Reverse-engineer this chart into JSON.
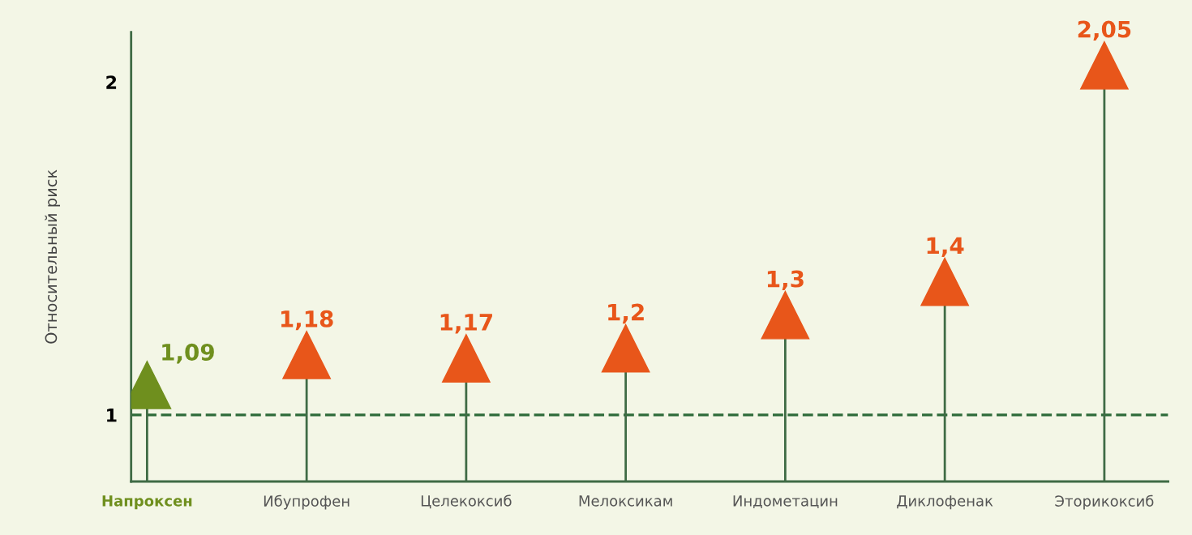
{
  "chart_data": {
    "type": "lollipop",
    "ylabel": "Относительный риск",
    "categories": [
      "Напроксен",
      "Ибупрофен",
      "Целекоксиб",
      "Мелоксикам",
      "Индометацин",
      "Диклофенак",
      "Эторикоксиб"
    ],
    "values": [
      1.09,
      1.18,
      1.17,
      1.2,
      1.3,
      1.4,
      2.05
    ],
    "colors": [
      "#6f8f1e",
      "#e8561a",
      "#e8561a",
      "#e8561a",
      "#e8561a",
      "#e8561a",
      "#e8561a"
    ],
    "value_labels": [
      "1,09",
      "1,18",
      "1,17",
      "1,2",
      "1,3",
      "1,4",
      "2,05"
    ],
    "marker": "triangle",
    "ylim": [
      0.8,
      2.15
    ],
    "yticks": [
      1,
      2
    ],
    "ref_lines": [
      {
        "axis": "y",
        "value": 1,
        "color": "#2e6b3a",
        "line_style": "dashed"
      }
    ],
    "grid": false,
    "legend": false
  }
}
